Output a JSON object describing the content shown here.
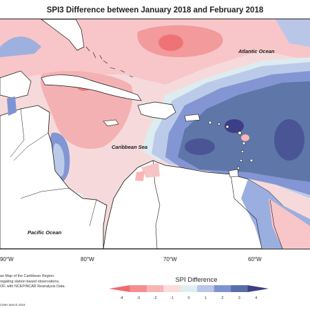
{
  "title": "SPI3 Difference between January 2018 and February 2018",
  "map_labels": {
    "atlantic": "Atlantic Ocean",
    "caribbean": "Caribbean Sea",
    "pacific": "Pacific Ocean"
  },
  "longitude_labels": [
    "90°W",
    "80°W",
    "70°W",
    "60°W"
  ],
  "legend": {
    "title": "SPI Difference",
    "ticks": [
      "-4",
      "-3",
      "-2",
      "-1",
      "0",
      "1",
      "2",
      "3",
      "4"
    ],
    "colors": [
      "#ef6b6e",
      "#f38f91",
      "#f7b5b7",
      "#fbdcdc",
      "#dfeef0",
      "#b9c6e8",
      "#7e94d2",
      "#5a6fa8",
      "#3c3f85"
    ]
  },
  "footer_note": [
    "an Map of the Caribbean Region.",
    "regating station based observations,",
    "OF, with NCEP/NCAR Reanalysis Data."
  ],
  "credit": "CIMH March 2018",
  "colors": {
    "land": "#ffffff",
    "coast": "#111111",
    "background": "#ffffff"
  }
}
